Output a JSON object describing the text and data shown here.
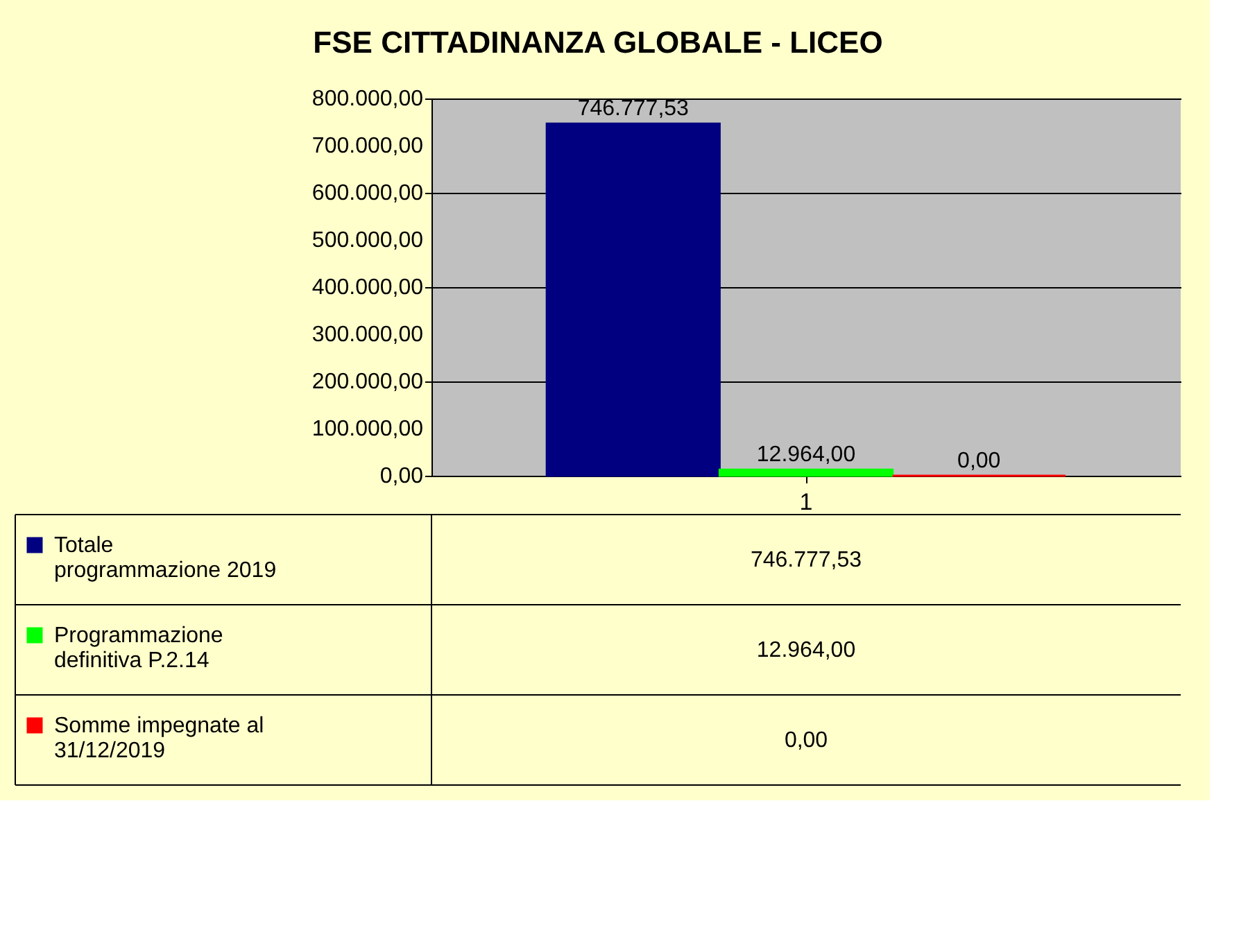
{
  "chart_data": {
    "type": "bar",
    "title": "FSE CITTADINANZA GLOBALE - LICEO",
    "categories": [
      "1"
    ],
    "series": [
      {
        "name": "Totale programmazione 2019",
        "color": "#000080",
        "values": [
          746777.53
        ],
        "value_labels": [
          "746.777,53"
        ]
      },
      {
        "name": "Programmazione definitiva P.2.14",
        "color": "#00ff00",
        "values": [
          12964.0
        ],
        "value_labels": [
          "12.964,00"
        ]
      },
      {
        "name": "Somme impegnate al 31/12/2019",
        "color": "#ff0000",
        "values": [
          0.0
        ],
        "value_labels": [
          "0,00"
        ]
      }
    ],
    "ylim": [
      0,
      800000
    ],
    "yticks": [
      {
        "value": 0,
        "label": "0,00"
      },
      {
        "value": 100000,
        "label": "100.000,00"
      },
      {
        "value": 200000,
        "label": "200.000,00"
      },
      {
        "value": 300000,
        "label": "300.000,00"
      },
      {
        "value": 400000,
        "label": "400.000,00"
      },
      {
        "value": 500000,
        "label": "500.000,00"
      },
      {
        "value": 600000,
        "label": "600.000,00"
      },
      {
        "value": 700000,
        "label": "700.000,00"
      },
      {
        "value": 800000,
        "label": "800.000,00"
      }
    ],
    "grid": "y",
    "legend": "bottom left"
  }
}
